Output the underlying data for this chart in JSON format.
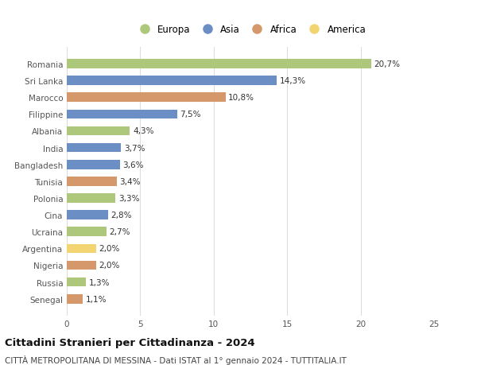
{
  "countries": [
    "Romania",
    "Sri Lanka",
    "Marocco",
    "Filippine",
    "Albania",
    "India",
    "Bangladesh",
    "Tunisia",
    "Polonia",
    "Cina",
    "Ucraina",
    "Argentina",
    "Nigeria",
    "Russia",
    "Senegal"
  ],
  "values": [
    20.7,
    14.3,
    10.8,
    7.5,
    4.3,
    3.7,
    3.6,
    3.4,
    3.3,
    2.8,
    2.7,
    2.0,
    2.0,
    1.3,
    1.1
  ],
  "labels": [
    "20,7%",
    "14,3%",
    "10,8%",
    "7,5%",
    "4,3%",
    "3,7%",
    "3,6%",
    "3,4%",
    "3,3%",
    "2,8%",
    "2,7%",
    "2,0%",
    "2,0%",
    "1,3%",
    "1,1%"
  ],
  "continents": [
    "Europa",
    "Asia",
    "Africa",
    "Asia",
    "Europa",
    "Asia",
    "Asia",
    "Africa",
    "Europa",
    "Asia",
    "Europa",
    "America",
    "Africa",
    "Europa",
    "Africa"
  ],
  "colors": {
    "Europa": "#adc87a",
    "Asia": "#6b8ec4",
    "Africa": "#d4986a",
    "America": "#f2d472"
  },
  "xlim": [
    0,
    25
  ],
  "xticks": [
    0,
    5,
    10,
    15,
    20,
    25
  ],
  "title": "Cittadini Stranieri per Cittadinanza - 2024",
  "subtitle": "CITTÀ METROPOLITANA DI MESSINA - Dati ISTAT al 1° gennaio 2024 - TUTTITALIA.IT",
  "background_color": "#ffffff",
  "grid_color": "#dddddd",
  "bar_height": 0.55,
  "label_fontsize": 7.5,
  "tick_fontsize": 7.5,
  "title_fontsize": 9.5,
  "subtitle_fontsize": 7.5,
  "legend_order": [
    "Europa",
    "Asia",
    "Africa",
    "America"
  ],
  "legend_fontsize": 8.5
}
